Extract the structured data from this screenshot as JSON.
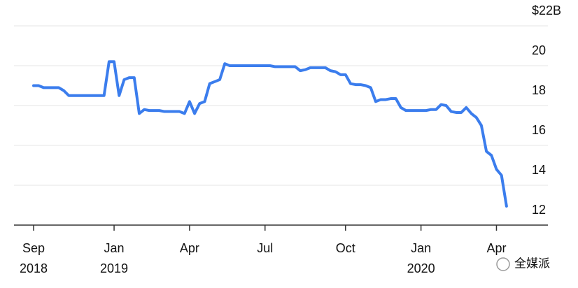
{
  "chart_data": {
    "type": "line",
    "categories": [
      "Sep",
      null,
      null,
      null,
      null,
      null,
      null,
      null,
      null,
      null,
      null,
      null,
      null,
      null,
      null,
      null,
      "Jan",
      null,
      null,
      null,
      null,
      null,
      null,
      null,
      null,
      null,
      null,
      null,
      null,
      null,
      null,
      "Apr",
      null,
      null,
      null,
      null,
      null,
      null,
      null,
      null,
      null,
      null,
      null,
      null,
      null,
      null,
      "Jul",
      null,
      null,
      null,
      null,
      null,
      null,
      null,
      null,
      null,
      null,
      null,
      null,
      null,
      null,
      null,
      "Oct",
      null,
      null,
      null,
      null,
      null,
      null,
      null,
      null,
      null,
      null,
      null,
      null,
      null,
      null,
      "Jan",
      null,
      null,
      null,
      null,
      null,
      null,
      null,
      null,
      null,
      null,
      null,
      null,
      null,
      null,
      "Apr",
      null,
      null
    ],
    "years": [
      "2018",
      null,
      null,
      null,
      null,
      null,
      null,
      null,
      null,
      null,
      null,
      null,
      null,
      null,
      null,
      null,
      "2019",
      null,
      null,
      null,
      null,
      null,
      null,
      null,
      null,
      null,
      null,
      null,
      null,
      null,
      null,
      null,
      null,
      null,
      null,
      null,
      null,
      null,
      null,
      null,
      null,
      null,
      null,
      null,
      null,
      null,
      null,
      null,
      null,
      null,
      null,
      null,
      null,
      null,
      null,
      null,
      null,
      null,
      null,
      null,
      null,
      null,
      null,
      null,
      null,
      null,
      null,
      null,
      null,
      null,
      null,
      null,
      null,
      null,
      null,
      null,
      null,
      "2020",
      null,
      null,
      null,
      null,
      null,
      null,
      null,
      null,
      null,
      null,
      null,
      null,
      null,
      null,
      null,
      null,
      null
    ],
    "values": [
      19.0,
      19.0,
      18.9,
      18.9,
      18.9,
      18.9,
      18.75,
      18.5,
      18.5,
      18.5,
      18.5,
      18.5,
      18.5,
      18.5,
      18.5,
      20.2,
      20.2,
      18.5,
      19.3,
      19.4,
      19.4,
      17.6,
      17.8,
      17.75,
      17.75,
      17.75,
      17.7,
      17.7,
      17.7,
      17.7,
      17.6,
      18.2,
      17.6,
      18.1,
      18.2,
      19.1,
      19.2,
      19.3,
      20.1,
      20.0,
      20.0,
      20.0,
      20.0,
      20.0,
      20.0,
      20.0,
      20.0,
      20.0,
      19.95,
      19.95,
      19.95,
      19.95,
      19.95,
      19.75,
      19.8,
      19.9,
      19.9,
      19.9,
      19.9,
      19.75,
      19.7,
      19.55,
      19.55,
      19.1,
      19.05,
      19.05,
      19.0,
      18.9,
      18.2,
      18.3,
      18.3,
      18.35,
      18.35,
      17.9,
      17.75,
      17.75,
      17.75,
      17.75,
      17.75,
      17.8,
      17.8,
      18.05,
      18.0,
      17.7,
      17.65,
      17.65,
      17.9,
      17.6,
      17.4,
      17.0,
      15.7,
      15.5,
      14.8,
      14.5,
      12.95
    ],
    "color": "#3b7ded",
    "ylim": [
      12,
      22
    ],
    "yticks": [
      12,
      14,
      16,
      18,
      20,
      {
        "value": 22,
        "label": "$22B"
      }
    ],
    "grid": true,
    "watermark": "全媒派"
  }
}
